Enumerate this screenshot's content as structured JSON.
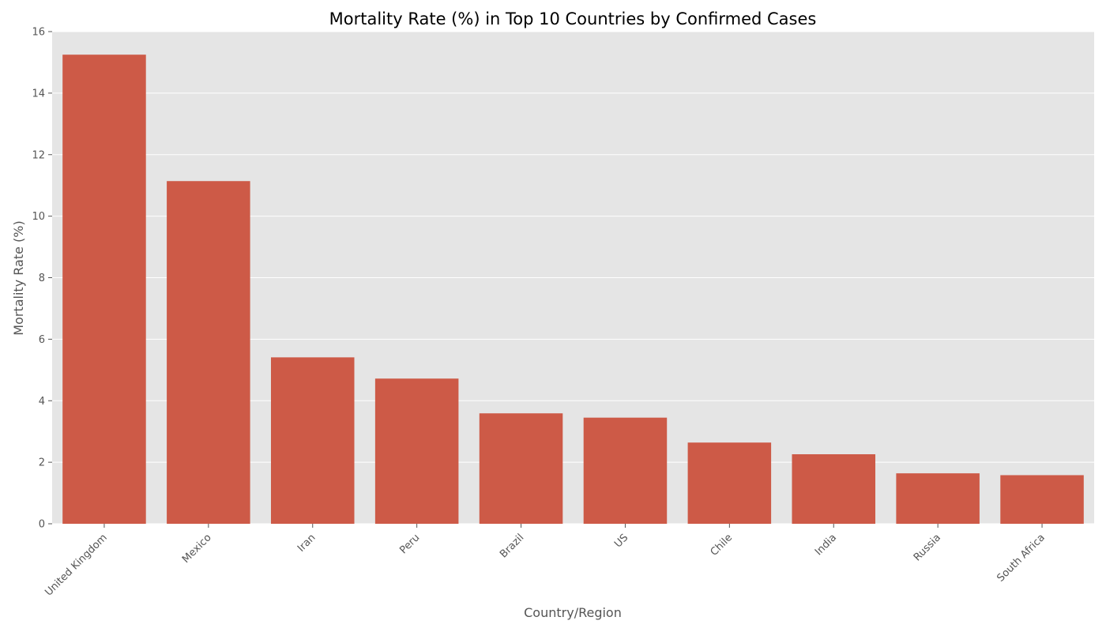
{
  "chart_data": {
    "type": "bar",
    "title": "Mortality Rate (%) in Top 10 Countries by Confirmed Cases",
    "xlabel": "Country/Region",
    "ylabel": "Mortality Rate (%)",
    "categories": [
      "United Kingdom",
      "Mexico",
      "Iran",
      "Peru",
      "Brazil",
      "US",
      "Chile",
      "India",
      "Russia",
      "South Africa"
    ],
    "values": [
      15.25,
      11.14,
      5.41,
      4.72,
      3.59,
      3.45,
      2.64,
      2.26,
      1.64,
      1.58
    ],
    "ylim": [
      0,
      16
    ],
    "yticks": [
      0,
      2,
      4,
      6,
      8,
      10,
      12,
      14,
      16
    ],
    "grid": true,
    "colors": {
      "bar": "#CD5A47",
      "plot_background": "#E5E5E5",
      "grid": "#FFFFFF"
    }
  }
}
